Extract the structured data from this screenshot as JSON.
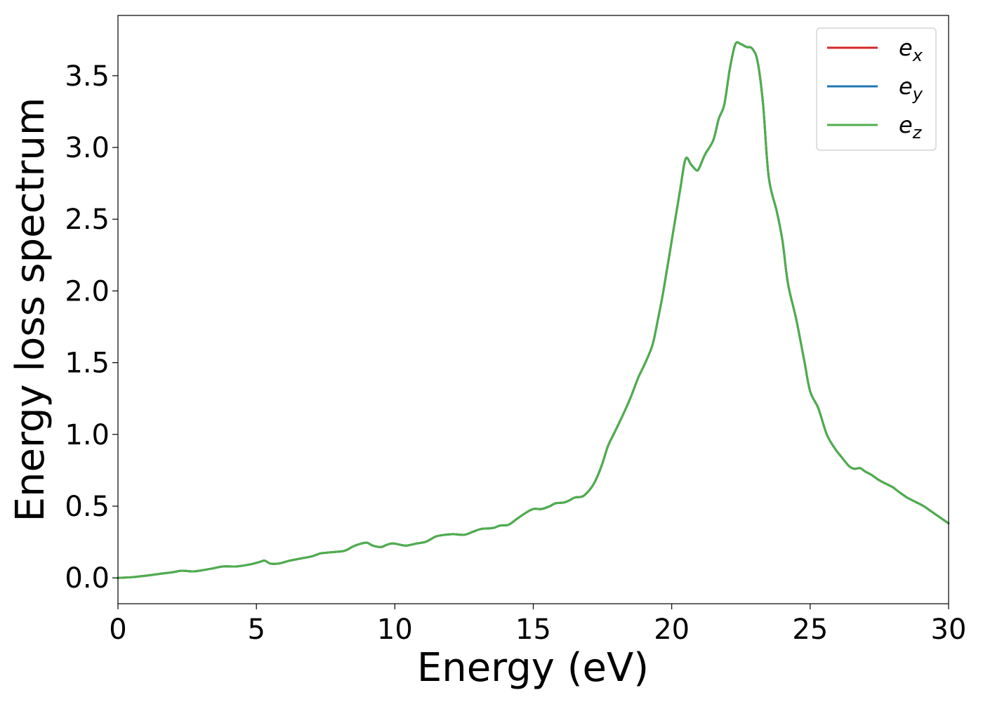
{
  "chart_data": {
    "type": "line",
    "xlabel": "Energy (eV)",
    "ylabel": "Energy loss spectrum",
    "xlim": [
      0,
      30
    ],
    "ylim": [
      -0.18,
      3.92
    ],
    "xticks": [
      0,
      5,
      10,
      15,
      20,
      25,
      30
    ],
    "xtick_labels": [
      "0",
      "5",
      "10",
      "15",
      "20",
      "25",
      "30"
    ],
    "yticks": [
      0.0,
      0.5,
      1.0,
      1.5,
      2.0,
      2.5,
      3.0,
      3.5
    ],
    "ytick_labels": [
      "0.0",
      "0.5",
      "1.0",
      "1.5",
      "2.0",
      "2.5",
      "3.0",
      "3.5"
    ],
    "grid": false,
    "legend_position": "top-right",
    "x": [
      0,
      0.5,
      1,
      1.5,
      2,
      2.3,
      2.7,
      3,
      3.4,
      3.8,
      4.3,
      4.8,
      5.1,
      5.3,
      5.5,
      5.8,
      6.2,
      6.6,
      7,
      7.3,
      7.5,
      7.8,
      8.2,
      8.5,
      8.8,
      9.0,
      9.2,
      9.5,
      9.7,
      9.9,
      10.1,
      10.4,
      10.8,
      11.1,
      11.3,
      11.5,
      11.8,
      12.1,
      12.5,
      12.8,
      13.1,
      13.4,
      13.6,
      13.8,
      14.1,
      14.4,
      14.7,
      15.0,
      15.3,
      15.6,
      15.8,
      16.1,
      16.3,
      16.5,
      16.8,
      17.1,
      17.3,
      17.5,
      17.7,
      17.9,
      18.2,
      18.5,
      18.8,
      19.0,
      19.3,
      19.5,
      19.7,
      20.0,
      20.3,
      20.5,
      20.7,
      20.9,
      21.0,
      21.2,
      21.5,
      21.7,
      21.9,
      22.1,
      22.3,
      22.5,
      22.7,
      22.9,
      23.1,
      23.3,
      23.5,
      23.8,
      24.0,
      24.2,
      24.5,
      24.8,
      25.0,
      25.3,
      25.6,
      25.9,
      26.1,
      26.4,
      26.6,
      26.8,
      27.0,
      27.2,
      27.5,
      27.8,
      28.0,
      28.2,
      28.5,
      28.8,
      29.1,
      29.4,
      29.7,
      30.0
    ],
    "y": [
      0.0,
      0.005,
      0.015,
      0.028,
      0.04,
      0.05,
      0.045,
      0.052,
      0.065,
      0.08,
      0.08,
      0.095,
      0.11,
      0.12,
      0.1,
      0.1,
      0.12,
      0.135,
      0.15,
      0.17,
      0.175,
      0.18,
      0.19,
      0.22,
      0.24,
      0.245,
      0.225,
      0.215,
      0.23,
      0.24,
      0.235,
      0.225,
      0.24,
      0.25,
      0.27,
      0.29,
      0.3,
      0.305,
      0.3,
      0.32,
      0.34,
      0.345,
      0.35,
      0.365,
      0.37,
      0.41,
      0.45,
      0.48,
      0.48,
      0.5,
      0.52,
      0.525,
      0.54,
      0.56,
      0.57,
      0.63,
      0.7,
      0.8,
      0.92,
      1.0,
      1.12,
      1.25,
      1.4,
      1.48,
      1.62,
      1.8,
      2.0,
      2.35,
      2.7,
      2.92,
      2.88,
      2.84,
      2.86,
      2.95,
      3.05,
      3.2,
      3.3,
      3.55,
      3.72,
      3.72,
      3.7,
      3.69,
      3.6,
      3.3,
      2.8,
      2.55,
      2.35,
      2.05,
      1.8,
      1.5,
      1.3,
      1.18,
      1.0,
      0.9,
      0.85,
      0.78,
      0.76,
      0.765,
      0.74,
      0.72,
      0.68,
      0.65,
      0.63,
      0.6,
      0.56,
      0.53,
      0.5,
      0.46,
      0.42,
      0.38
    ],
    "series": [
      {
        "name": "e_x",
        "label_main": "e",
        "label_sub": "x",
        "color": "#d62728"
      },
      {
        "name": "e_y",
        "label_main": "e",
        "label_sub": "y",
        "color": "#1f77b4"
      },
      {
        "name": "e_z",
        "label_main": "e",
        "label_sub": "z",
        "color": "#4daf4a"
      }
    ]
  }
}
